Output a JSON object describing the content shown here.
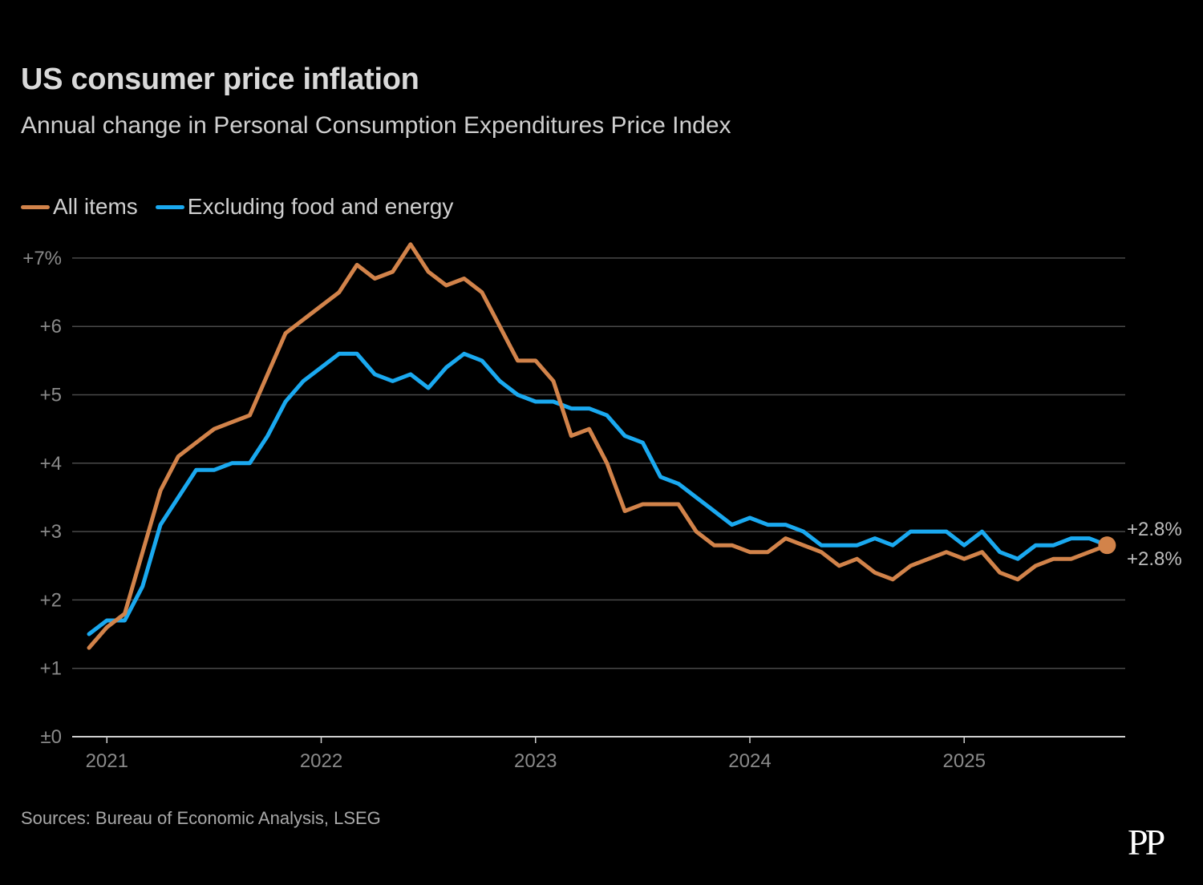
{
  "header": {
    "title": "US consumer price inflation",
    "subtitle": "Annual change in Personal Consumption Expenditures Price Index"
  },
  "footer": {
    "source": "Sources: Bureau of Economic Analysis, LSEG",
    "logo": "PP"
  },
  "colors": {
    "all_items": "#d2834a",
    "core": "#1aa9f0",
    "grid": "#4a4a4a",
    "axis": "#cfcfcf"
  },
  "chart_data": {
    "type": "line",
    "title": "US consumer price inflation",
    "subtitle": "Annual change in Personal Consumption Expenditures Price Index",
    "xlabel": "",
    "ylabel": "",
    "x_start": "2020-12",
    "x_ticks": [
      "2021",
      "2022",
      "2023",
      "2024",
      "2025"
    ],
    "y_ticks": [
      "±0",
      "+1",
      "+2",
      "+3",
      "+4",
      "+5",
      "+6",
      "+7%"
    ],
    "y_tick_values": [
      0,
      1,
      2,
      3,
      4,
      5,
      6,
      7
    ],
    "ylim": [
      0,
      7.4
    ],
    "legend_position": "top-left",
    "series": [
      {
        "name": "All items",
        "key": "all_items",
        "end_label": "+2.8%",
        "values": [
          1.3,
          1.6,
          1.8,
          2.7,
          3.6,
          4.1,
          4.3,
          4.5,
          4.6,
          4.7,
          5.3,
          5.9,
          6.1,
          6.3,
          6.5,
          6.9,
          6.7,
          6.8,
          7.2,
          6.8,
          6.6,
          6.7,
          6.5,
          6.0,
          5.5,
          5.5,
          5.2,
          4.4,
          4.5,
          4.0,
          3.3,
          3.4,
          3.4,
          3.4,
          3.0,
          2.8,
          2.8,
          2.7,
          2.7,
          2.9,
          2.8,
          2.7,
          2.5,
          2.6,
          2.4,
          2.3,
          2.5,
          2.6,
          2.7,
          2.6,
          2.7,
          2.4,
          2.3,
          2.5,
          2.6,
          2.6,
          2.7,
          2.8
        ]
      },
      {
        "name": "Excluding food and energy",
        "key": "core",
        "end_label": "+2.8%",
        "values": [
          1.5,
          1.7,
          1.7,
          2.2,
          3.1,
          3.5,
          3.9,
          3.9,
          4.0,
          4.0,
          4.4,
          4.9,
          5.2,
          5.4,
          5.6,
          5.6,
          5.3,
          5.2,
          5.3,
          5.1,
          5.4,
          5.6,
          5.5,
          5.2,
          5.0,
          4.9,
          4.9,
          4.8,
          4.8,
          4.7,
          4.4,
          4.3,
          3.8,
          3.7,
          3.5,
          3.3,
          3.1,
          3.2,
          3.1,
          3.1,
          3.0,
          2.8,
          2.8,
          2.8,
          2.9,
          2.8,
          3.0,
          3.0,
          3.0,
          2.8,
          3.0,
          2.7,
          2.6,
          2.8,
          2.8,
          2.9,
          2.9,
          2.8
        ]
      }
    ]
  }
}
